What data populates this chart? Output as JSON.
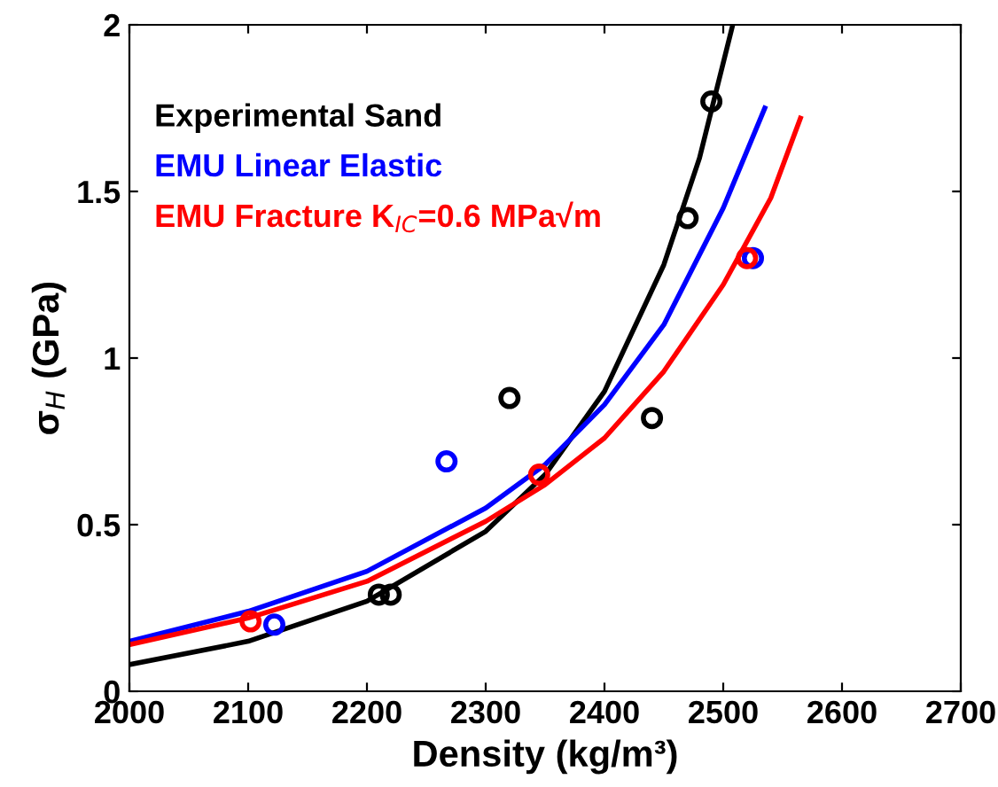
{
  "chart_data": {
    "type": "line",
    "xlabel": "Density (kg/m³)",
    "ylabel": "σ$_{H}$ (GPa)",
    "xlim": [
      2000,
      2700
    ],
    "xticks": [
      2000,
      2100,
      2200,
      2300,
      2400,
      2500,
      2600,
      2700
    ],
    "ylim": [
      0,
      2
    ],
    "yticks": [
      0,
      0.5,
      1,
      1.5,
      2
    ],
    "grid": false,
    "legend": "top left",
    "line_style": "solid",
    "series": [
      {
        "name": "Experimental Sand",
        "color": "#000000",
        "x": [
          2000,
          2100,
          2200,
          2300,
          2350,
          2400,
          2450,
          2480,
          2508
        ],
        "values": [
          0.08,
          0.15,
          0.27,
          0.48,
          0.65,
          0.9,
          1.28,
          1.6,
          2.0
        ]
      },
      {
        "name": "EMU Linear Elastic",
        "color": "#0000ff",
        "x": [
          2000,
          2100,
          2200,
          2300,
          2350,
          2400,
          2450,
          2500,
          2535
        ],
        "values": [
          0.15,
          0.24,
          0.36,
          0.55,
          0.68,
          0.86,
          1.1,
          1.45,
          1.75
        ]
      },
      {
        "name": "EMU Fracture K$_{IC}$=0.6 MPa√m",
        "color": "#ff0000",
        "x": [
          2000,
          2100,
          2200,
          2300,
          2350,
          2400,
          2450,
          2500,
          2540,
          2565
        ],
        "values": [
          0.14,
          0.22,
          0.33,
          0.51,
          0.62,
          0.76,
          0.96,
          1.22,
          1.48,
          1.72
        ]
      },
      {
        "color": "#000000",
        "type": "scatter",
        "marker": "circle",
        "x": [
          2210,
          2220,
          2320,
          2440,
          2470,
          2490
        ],
        "values": [
          0.29,
          0.29,
          0.88,
          0.82,
          1.42,
          1.77
        ]
      },
      {
        "color": "#0000ff",
        "type": "scatter",
        "marker": "circle",
        "x": [
          2122,
          2267,
          2525
        ],
        "values": [
          0.2,
          0.69,
          1.3
        ]
      },
      {
        "color": "#ff0000",
        "type": "scatter",
        "marker": "circle",
        "x": [
          2102,
          2345,
          2520
        ],
        "values": [
          0.21,
          0.65,
          1.3
        ]
      }
    ]
  }
}
